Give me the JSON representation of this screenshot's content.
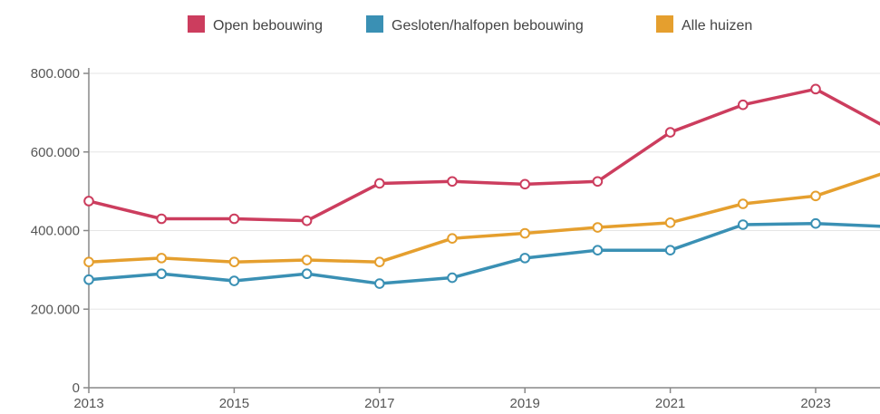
{
  "chart_data": {
    "type": "line",
    "title": "",
    "xlabel": "",
    "ylabel": "",
    "x": [
      2013,
      2014,
      2015,
      2016,
      2017,
      2018,
      2019,
      2020,
      2021,
      2022,
      2023,
      2024
    ],
    "x_ticks": [
      "2013",
      "2015",
      "2017",
      "2019",
      "2021",
      "2023"
    ],
    "y_ticks": [
      "0",
      "200.000",
      "400.000",
      "600.000",
      "800.000"
    ],
    "y_tick_values": [
      0,
      200000,
      400000,
      600000,
      800000
    ],
    "ylim": [
      0,
      800000
    ],
    "grid": "horizontal",
    "legend_position": "top",
    "series": [
      {
        "name": "Open bebouwing",
        "color": "#cc3d5e",
        "values": [
          475000,
          430000,
          430000,
          425000,
          520000,
          525000,
          518000,
          525000,
          650000,
          720000,
          760000,
          660000
        ]
      },
      {
        "name": "Gesloten/halfopen bebouwing",
        "color": "#3a90b4",
        "values": [
          275000,
          290000,
          272000,
          290000,
          265000,
          280000,
          330000,
          350000,
          350000,
          415000,
          418000,
          410000
        ]
      },
      {
        "name": "Alle huizen",
        "color": "#e59f2e",
        "values": [
          320000,
          330000,
          320000,
          325000,
          320000,
          380000,
          393000,
          408000,
          420000,
          468000,
          488000,
          550000
        ]
      }
    ]
  }
}
